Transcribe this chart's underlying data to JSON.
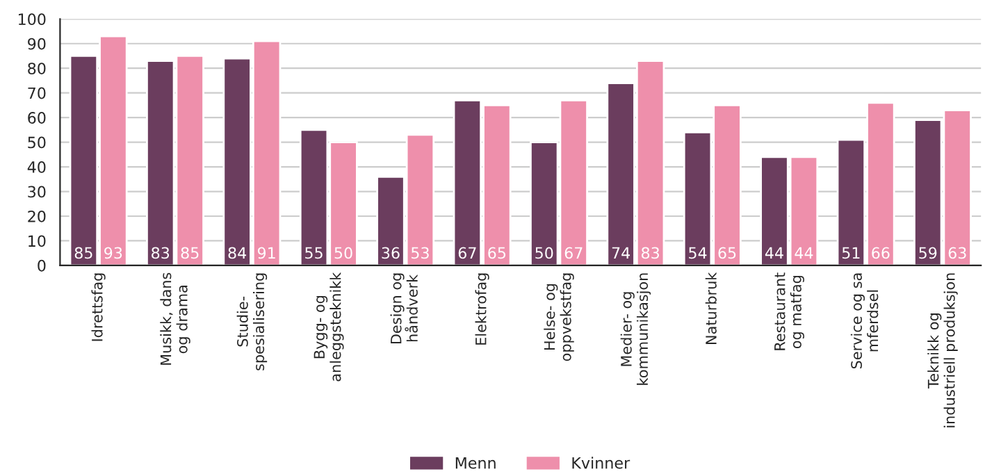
{
  "chart_data": {
    "type": "bar",
    "categories": [
      "Idrettsfag",
      "Musikk, dans\nog drama",
      "Studie-\nspesialisering",
      "Bygg- og\nanleggsteknikk",
      "Design og\nhåndverk",
      "Elektrofag",
      "Helse- og\noppvekstfag",
      "Medier- og\nkommunikasjon",
      "Naturbruk",
      "Restaurant\nog matfag",
      "Service og sa\nmferdsel",
      "Teknikk og\nindustriell produksjon"
    ],
    "series": [
      {
        "name": "Menn",
        "color": "#6b3d5e",
        "values": [
          85,
          83,
          84,
          55,
          36,
          67,
          50,
          74,
          54,
          44,
          51,
          59
        ]
      },
      {
        "name": "Kvinner",
        "color": "#ee8fab",
        "values": [
          93,
          85,
          91,
          50,
          53,
          65,
          67,
          83,
          65,
          44,
          66,
          63
        ]
      }
    ],
    "ylim": [
      0,
      100
    ],
    "yticks": [
      0,
      10,
      20,
      30,
      40,
      50,
      60,
      70,
      80,
      90,
      100
    ],
    "grid": "y",
    "legend": "bottom",
    "data_labels": true
  }
}
